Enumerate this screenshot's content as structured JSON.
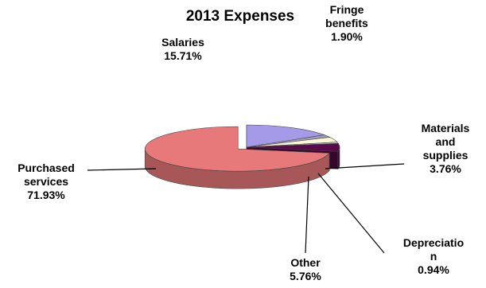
{
  "chart_data": {
    "type": "pie",
    "title": "2013 Expenses",
    "legend": "none",
    "slices": [
      {
        "name": "Salaries",
        "value": 15.71,
        "label_lines": [
          "Salaries"
        ],
        "value_label": "15.71%",
        "color": "#a59ae8"
      },
      {
        "name": "Fringe benefits",
        "value": 1.9,
        "label_lines": [
          "Fringe",
          "benefits"
        ],
        "value_label": "1.90%",
        "color": "#9fa0b8"
      },
      {
        "name": "Materials and supplies",
        "value": 3.76,
        "label_lines": [
          "Materials",
          "and",
          "supplies"
        ],
        "value_label": "3.76%",
        "color": "#fff6d6"
      },
      {
        "name": "Depreciation",
        "value": 0.94,
        "label_lines": [
          "Depreciatio",
          "n"
        ],
        "value_label": "0.94%",
        "color": "#c8d8f0"
      },
      {
        "name": "Other",
        "value": 5.76,
        "label_lines": [
          "Other"
        ],
        "value_label": "5.76%",
        "color": "#5a0a4a"
      },
      {
        "name": "Purchased services",
        "value": 71.93,
        "label_lines": [
          "Purchased",
          "services"
        ],
        "value_label": "71.93%",
        "color": "#e8797a"
      }
    ]
  }
}
